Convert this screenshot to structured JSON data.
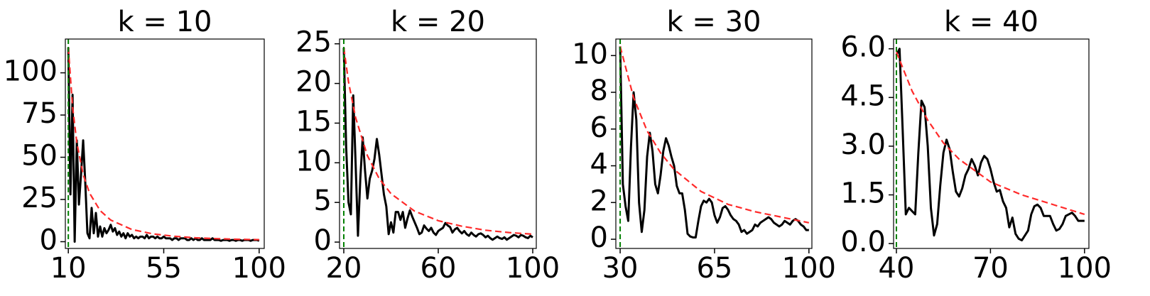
{
  "chart_data": [
    {
      "type": "line",
      "title": "k = 10",
      "xlim": [
        8.6,
        102.4
      ],
      "ylim": [
        -4,
        120
      ],
      "xticks": [
        10,
        55,
        100
      ],
      "yticks": [
        0,
        25,
        50,
        75,
        100
      ],
      "vline": {
        "x": 10,
        "color": "#008000"
      },
      "series": [
        {
          "color": "#000000",
          "x": [
            10,
            11,
            12,
            13,
            14,
            15,
            16,
            17,
            18,
            19,
            20,
            21,
            22,
            23,
            24,
            25,
            26,
            27,
            28,
            29,
            30,
            31,
            32,
            33,
            34,
            35,
            36,
            37,
            38,
            39,
            40,
            41,
            42,
            43,
            44,
            45,
            46,
            47,
            48,
            49,
            50,
            51,
            52,
            53,
            54,
            55,
            56,
            57,
            58,
            59,
            60,
            61,
            62,
            63,
            64,
            65,
            66,
            67,
            68,
            69,
            70,
            71,
            72,
            73,
            74,
            75,
            76,
            77,
            78,
            79,
            80,
            81,
            82,
            83,
            84,
            85,
            86,
            87,
            88,
            89,
            90,
            91,
            92,
            93,
            94,
            95,
            96,
            97,
            98,
            99,
            100
          ],
          "values": [
            115,
            28,
            87,
            0,
            60,
            22,
            40,
            60,
            35,
            5,
            2,
            20,
            5,
            17,
            3,
            9,
            3,
            8,
            5,
            7,
            10,
            6,
            8,
            4,
            6,
            3,
            5,
            2,
            5,
            3,
            4,
            2,
            3,
            2,
            3,
            3,
            2,
            4,
            2,
            3,
            3,
            2,
            3,
            2,
            2,
            3,
            2,
            2,
            2,
            1,
            2,
            2,
            1,
            2,
            2,
            2,
            1,
            1,
            2,
            1,
            2,
            1,
            1,
            2,
            1,
            1,
            1,
            1,
            2,
            1,
            1,
            1,
            0.5,
            1,
            1,
            1,
            0.5,
            1,
            1,
            0.5,
            1,
            1,
            0.5,
            1,
            1,
            1,
            0.5,
            1,
            1,
            1,
            0.5
          ]
        },
        {
          "color": "#ff2a2a",
          "style": "dashed",
          "x": [
            10,
            12,
            14,
            17,
            20,
            25,
            30,
            40,
            50,
            60,
            70,
            80,
            90,
            100
          ],
          "values": [
            115,
            79.9,
            58.7,
            39.8,
            28.8,
            18.4,
            12.8,
            7.2,
            4.6,
            3.2,
            2.3,
            1.8,
            1.4,
            1.2
          ]
        }
      ]
    },
    {
      "type": "line",
      "title": "k = 20",
      "xlim": [
        18.2,
        101.5
      ],
      "ylim": [
        -0.8,
        25.6
      ],
      "xticks": [
        20,
        60,
        100
      ],
      "yticks": [
        0,
        5,
        10,
        15,
        20,
        25
      ],
      "vline": {
        "x": 20,
        "color": "#008000"
      },
      "series": [
        {
          "color": "#000000",
          "x": [
            20,
            21,
            22,
            23,
            24,
            25,
            26,
            27,
            28,
            29,
            30,
            31,
            32,
            33,
            34,
            35,
            36,
            37,
            38,
            39,
            40,
            41,
            42,
            43,
            44,
            45,
            46,
            47,
            48,
            49,
            50,
            51,
            52,
            53,
            54,
            55,
            56,
            57,
            58,
            59,
            60,
            61,
            62,
            63,
            64,
            65,
            66,
            67,
            68,
            69,
            70,
            71,
            72,
            73,
            74,
            75,
            76,
            77,
            78,
            79,
            80,
            81,
            82,
            83,
            84,
            85,
            86,
            87,
            88,
            89,
            90,
            91,
            92,
            93,
            94,
            95,
            96,
            97,
            98,
            99,
            100
          ],
          "values": [
            24.5,
            12,
            5,
            3.5,
            18.5,
            10,
            0.8,
            8,
            13.2,
            9,
            5.5,
            8,
            9,
            10.5,
            13,
            11,
            8.5,
            6,
            4.5,
            1,
            2.5,
            1.2,
            3.8,
            3.8,
            2.8,
            3.8,
            1.8,
            3,
            4,
            3.2,
            2.5,
            1.8,
            1,
            1.2,
            2.1,
            1.7,
            1.4,
            1.8,
            1.2,
            0.9,
            1.4,
            1.6,
            1.8,
            2.4,
            2.1,
            1.9,
            1.2,
            1.6,
            1.8,
            1.4,
            1.1,
            1.4,
            1,
            0.8,
            1.2,
            0.9,
            0.7,
            1,
            1.1,
            0.9,
            0.6,
            0.8,
            0.5,
            0.3,
            0.5,
            0.7,
            0.5,
            0.4,
            0.6,
            0.3,
            0.5,
            0.7,
            0.9,
            0.8,
            0.6,
            0.9,
            0.8,
            0.6,
            0.5,
            0.8,
            0.6
          ]
        },
        {
          "color": "#ff2a2a",
          "style": "dashed",
          "x": [
            20,
            22,
            25,
            30,
            35,
            40,
            50,
            60,
            70,
            80,
            90,
            100
          ],
          "values": [
            24.5,
            20.2,
            15.7,
            10.9,
            8,
            6.1,
            3.9,
            2.7,
            2,
            1.5,
            1.2,
            1
          ]
        }
      ]
    },
    {
      "type": "line",
      "title": "k = 30",
      "xlim": [
        28.4,
        101.1
      ],
      "ylim": [
        -0.5,
        10.9
      ],
      "xticks": [
        30,
        65,
        100
      ],
      "yticks": [
        0,
        2,
        4,
        6,
        8,
        10
      ],
      "vline": {
        "x": 30,
        "color": "#008000"
      },
      "series": [
        {
          "color": "#000000",
          "x": [
            30,
            31,
            32,
            33,
            34,
            35,
            36,
            37,
            38,
            39,
            40,
            41,
            42,
            43,
            44,
            45,
            46,
            47,
            48,
            49,
            50,
            51,
            52,
            53,
            54,
            55,
            56,
            57,
            58,
            59,
            60,
            61,
            62,
            63,
            64,
            65,
            66,
            67,
            68,
            69,
            70,
            71,
            72,
            73,
            74,
            75,
            76,
            77,
            78,
            79,
            80,
            81,
            82,
            83,
            84,
            85,
            86,
            87,
            88,
            89,
            90,
            91,
            92,
            93,
            94,
            95,
            96,
            97,
            98,
            99,
            100
          ],
          "values": [
            10.5,
            3,
            1.8,
            1,
            5,
            8,
            6.5,
            2,
            0.4,
            1.6,
            4.5,
            5.8,
            4.8,
            3,
            2.5,
            3.5,
            4.8,
            5.5,
            5.1,
            4.5,
            4,
            2.9,
            2.5,
            2.5,
            1.6,
            0.3,
            0.15,
            0.1,
            0.1,
            1,
            1.8,
            2.1,
            2,
            2.2,
            2,
            1.3,
            0.9,
            1.2,
            1.7,
            1.8,
            1.6,
            1.3,
            1.1,
            1,
            0.8,
            0.4,
            0.5,
            0.3,
            0.4,
            0.5,
            0.8,
            0.7,
            0.9,
            1,
            1.1,
            1.2,
            1.1,
            0.9,
            0.8,
            0.7,
            0.8,
            1,
            0.9,
            0.8,
            1,
            1.1,
            1,
            0.8,
            0.7,
            0.5,
            0.5
          ]
        },
        {
          "color": "#ff2a2a",
          "style": "dashed",
          "x": [
            30,
            35,
            40,
            45,
            50,
            60,
            70,
            80,
            90,
            100
          ],
          "values": [
            10.5,
            7.7,
            5.9,
            4.7,
            3.8,
            2.6,
            1.9,
            1.5,
            1.2,
            0.9
          ]
        }
      ]
    },
    {
      "type": "line",
      "title": "k = 40",
      "xlim": [
        39.1,
        101.4
      ],
      "ylim": [
        -0.15,
        6.3
      ],
      "xticks": [
        40,
        70,
        100
      ],
      "yticks": [
        {
          "value": 0,
          "label": "0.0"
        },
        1.5,
        {
          "value": 3,
          "label": "3.0"
        },
        4.5,
        {
          "value": 6,
          "label": "6.0"
        }
      ],
      "vline": {
        "x": 40,
        "color": "#008000"
      },
      "series": [
        {
          "color": "#000000",
          "x": [
            40,
            41,
            42,
            43,
            44,
            45,
            46,
            47,
            48,
            49,
            50,
            51,
            52,
            53,
            54,
            55,
            56,
            57,
            58,
            59,
            60,
            61,
            62,
            63,
            64,
            65,
            66,
            67,
            68,
            69,
            70,
            71,
            72,
            73,
            74,
            75,
            76,
            77,
            78,
            79,
            80,
            81,
            82,
            83,
            84,
            85,
            86,
            87,
            88,
            89,
            90,
            91,
            92,
            93,
            94,
            95,
            96,
            97,
            98,
            99,
            100
          ],
          "values": [
            5.8,
            6,
            3.5,
            0.9,
            1.1,
            1,
            0.9,
            2.8,
            4.4,
            4.2,
            3,
            1.1,
            0.25,
            0.6,
            1.8,
            2.8,
            3.2,
            2.9,
            2.2,
            1.6,
            1.45,
            1.7,
            2.1,
            2.3,
            2.6,
            2.4,
            2.1,
            2.5,
            2.7,
            2.6,
            2.3,
            1.9,
            1.6,
            1.65,
            1.3,
            1.1,
            0.5,
            0.8,
            0.3,
            0.15,
            0.1,
            0.25,
            0.4,
            0.9,
            1.15,
            1.2,
            1.1,
            0.85,
            0.85,
            0.85,
            0.6,
            0.4,
            0.45,
            0.6,
            0.85,
            0.9,
            0.95,
            0.85,
            0.7,
            0.7,
            0.7
          ]
        },
        {
          "color": "#ff2a2a",
          "style": "dashed",
          "x": [
            40,
            45,
            50,
            55,
            60,
            70,
            80,
            90,
            100
          ],
          "values": [
            5.9,
            4.7,
            3.8,
            3.1,
            2.6,
            1.9,
            1.5,
            1.2,
            0.9
          ]
        }
      ]
    }
  ]
}
